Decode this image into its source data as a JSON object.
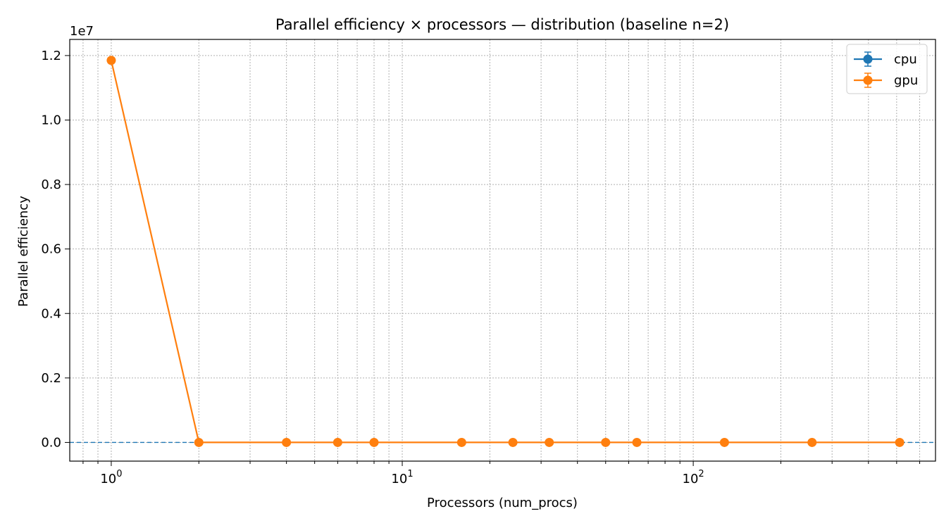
{
  "chart_data": {
    "type": "line",
    "title": "Parallel efficiency × processors — distribution (baseline n=2)",
    "xlabel": "Processors (num_procs)",
    "ylabel": "Parallel efficiency",
    "y_offset_label": "1e7",
    "xscale": "log",
    "xlim": [
      0.72,
      680
    ],
    "ylim": [
      -0.058,
      1.25
    ],
    "y_scale_factor": 10000000,
    "grid": true,
    "legend_position": "top-right",
    "x_ticks": [
      {
        "value": 1,
        "base": "10",
        "exp": "0"
      },
      {
        "value": 10,
        "base": "10",
        "exp": "1"
      },
      {
        "value": 100,
        "base": "10",
        "exp": "2"
      }
    ],
    "y_ticks": [
      "0.0",
      "0.2",
      "0.4",
      "0.6",
      "0.8",
      "1.0",
      "1.2"
    ],
    "reference_line": {
      "y": 0,
      "style": "dashed",
      "color": "#1f77b4"
    },
    "series": [
      {
        "name": "cpu",
        "color": "#1f77b4",
        "x": [],
        "y": []
      },
      {
        "name": "gpu",
        "color": "#ff7f0e",
        "x": [
          1,
          2,
          4,
          6,
          8,
          16,
          24,
          32,
          50,
          64,
          128,
          256,
          512
        ],
        "y": [
          1.185,
          0,
          0,
          0,
          0,
          0,
          0,
          0,
          0,
          0,
          0,
          0,
          0
        ]
      }
    ]
  }
}
